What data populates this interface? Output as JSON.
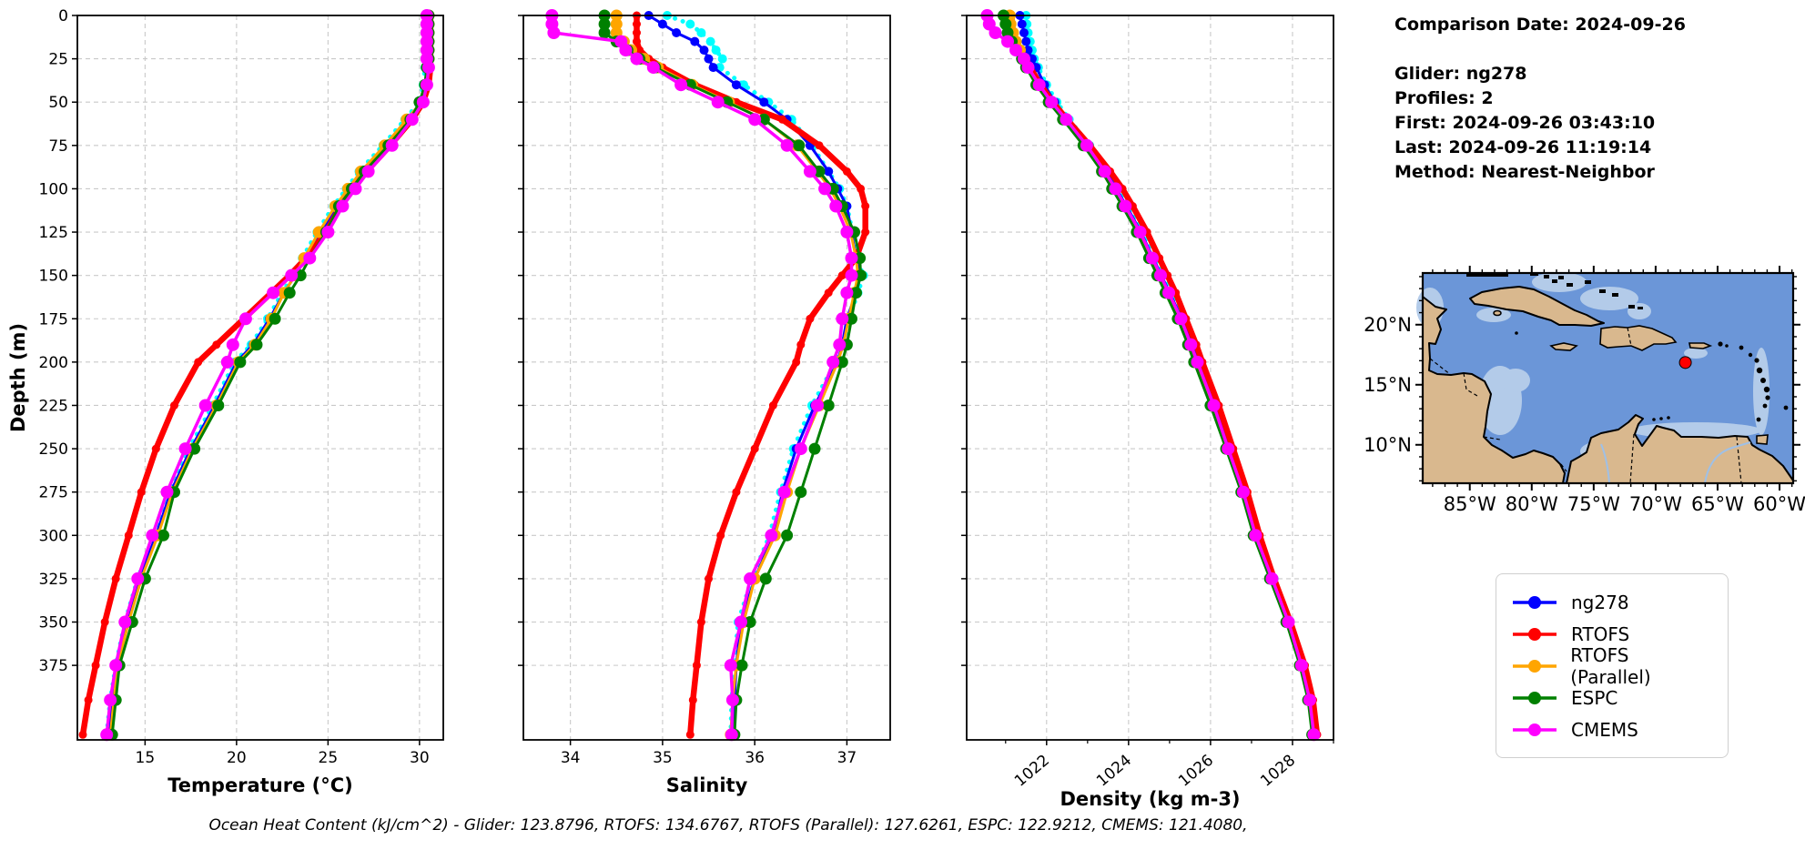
{
  "info_panel": {
    "lines": [
      "Comparison Date: 2024-09-26",
      "",
      "Glider: ng278",
      "Profiles: 2",
      "First: 2024-09-26 03:43:10",
      "Last: 2024-09-26 11:19:14",
      "Method: Nearest-Neighbor"
    ]
  },
  "footer": {
    "ohc_text": "Ocean Heat Content (kJ/cm^2) - Glider: 123.8796,  RTOFS: 134.6767,  RTOFS (Parallel): 127.6261,  ESPC: 122.9212,  CMEMS: 121.4080,"
  },
  "legend": {
    "entries": [
      {
        "label": "ng278",
        "color": "#0000ff"
      },
      {
        "label": "RTOFS",
        "color": "#ff0000"
      },
      {
        "label": "RTOFS (Parallel)",
        "color": "#ffa500"
      },
      {
        "label": "ESPC",
        "color": "#008000"
      },
      {
        "label": "CMEMS",
        "color": "#ff00ff"
      }
    ]
  },
  "map": {
    "xticks": [
      -85,
      -80,
      -75,
      -70,
      -65,
      -60
    ],
    "xtick_labels": [
      "85°W",
      "80°W",
      "75°W",
      "70°W",
      "65°W",
      "60°W"
    ],
    "yticks": [
      20,
      15,
      10
    ],
    "ytick_labels": [
      "20°N",
      "15°N",
      "10°N"
    ],
    "lon_min": -88.8,
    "lon_max": -58.9,
    "lat_min": 6.8,
    "lat_max": 24.3,
    "marker": {
      "lon": -67.6,
      "lat": 16.85,
      "color": "#ff0000"
    },
    "colors": {
      "water": "#6b96d8",
      "shallow": "#b3cbe9",
      "land": "#d9b88e",
      "coast": "#000000"
    }
  },
  "chart_data": [
    {
      "id": "temperature",
      "type": "line",
      "xlabel": "Temperature (°C)",
      "ylabel": "Depth (m)",
      "xlim": [
        11.3,
        31.3
      ],
      "xticks": [
        15,
        20,
        25,
        30
      ],
      "ylim": [
        0,
        418
      ],
      "yticks": [
        0,
        25,
        50,
        75,
        100,
        125,
        150,
        175,
        200,
        225,
        250,
        275,
        300,
        325,
        350,
        375
      ],
      "show_ytick_labels": true,
      "depths": [
        0,
        5,
        10,
        15,
        20,
        25,
        30,
        40,
        50,
        60,
        75,
        90,
        100,
        110,
        125,
        140,
        150,
        160,
        175,
        190,
        200,
        225,
        250,
        275,
        300,
        325,
        350,
        375,
        395,
        415
      ],
      "series": [
        {
          "id": "profile2",
          "label": null,
          "in_legend": false,
          "color": "#00ffff",
          "width": 5,
          "dash": "0.1 9",
          "marker": 5,
          "values": [
            30.3,
            30.3,
            30.3,
            30.3,
            30.3,
            30.3,
            30.3,
            30.2,
            30.0,
            29.2,
            28.0,
            26.7,
            26.0,
            25.3,
            24.4,
            23.6,
            23.1,
            22.5,
            21.7,
            20.8,
            19.9,
            18.7,
            17.4,
            16.3,
            15.5,
            14.6,
            13.9,
            13.4,
            13.1,
            12.9
          ]
        },
        {
          "id": "ng278",
          "label": "ng278",
          "in_legend": true,
          "color": "#0000ff",
          "width": 3,
          "dash": null,
          "marker": 5,
          "values": [
            30.4,
            30.4,
            30.4,
            30.4,
            30.4,
            30.4,
            30.4,
            30.3,
            30.1,
            29.4,
            28.2,
            26.9,
            26.2,
            25.5,
            24.6,
            23.8,
            23.2,
            22.6,
            21.8,
            20.9,
            20.0,
            18.8,
            17.5,
            16.4,
            15.6,
            14.7,
            14.0,
            13.5,
            13.2,
            13.0
          ]
        },
        {
          "id": "rtofs",
          "label": "RTOFS",
          "in_legend": true,
          "color": "#ff0000",
          "width": 6.5,
          "dash": null,
          "marker": 4.5,
          "values": [
            30.6,
            30.6,
            30.6,
            30.6,
            30.6,
            30.6,
            30.6,
            30.5,
            30.2,
            29.6,
            28.4,
            27.1,
            26.4,
            25.7,
            24.9,
            23.8,
            22.9,
            21.9,
            20.4,
            18.9,
            17.9,
            16.6,
            15.6,
            14.8,
            14.1,
            13.4,
            12.8,
            12.3,
            11.9,
            11.6
          ]
        },
        {
          "id": "rtofsp",
          "label": "RTOFS (Parallel)",
          "in_legend": true,
          "color": "#ffa500",
          "width": 3,
          "dash": null,
          "marker": 6.5,
          "values": [
            30.5,
            30.5,
            30.5,
            30.5,
            30.5,
            30.5,
            30.5,
            30.4,
            30.1,
            29.3,
            28.1,
            26.8,
            26.1,
            25.4,
            24.5,
            23.7,
            23.2,
            22.6,
            21.9,
            21.0,
            20.1,
            18.9,
            17.6,
            16.5,
            15.7,
            14.8,
            14.1,
            13.5,
            13.3,
            13.1
          ]
        },
        {
          "id": "espc",
          "label": "ESPC",
          "in_legend": true,
          "color": "#008000",
          "width": 3,
          "dash": null,
          "marker": 6.5,
          "values": [
            30.5,
            30.5,
            30.5,
            30.5,
            30.5,
            30.5,
            30.4,
            30.3,
            30.0,
            29.5,
            28.3,
            27.0,
            26.3,
            25.6,
            24.9,
            24.0,
            23.5,
            22.9,
            22.1,
            21.1,
            20.2,
            19.0,
            17.7,
            16.6,
            16.0,
            15.0,
            14.3,
            13.6,
            13.4,
            13.2
          ]
        },
        {
          "id": "cmems",
          "label": "CMEMS",
          "in_legend": true,
          "color": "#ff00ff",
          "width": 3.5,
          "dash": null,
          "marker": 7,
          "values": [
            30.4,
            30.4,
            30.4,
            30.4,
            30.4,
            30.4,
            30.5,
            30.4,
            30.2,
            29.6,
            28.5,
            27.2,
            26.5,
            25.8,
            25.0,
            24.0,
            23.0,
            22.0,
            20.5,
            19.8,
            19.5,
            18.3,
            17.2,
            16.2,
            15.4,
            14.6,
            13.9,
            13.4,
            13.1,
            12.9
          ]
        }
      ]
    },
    {
      "id": "salinity",
      "type": "line",
      "xlabel": "Salinity",
      "ylabel": null,
      "xlim": [
        33.49,
        37.47
      ],
      "xticks": [
        34,
        35,
        36,
        37
      ],
      "ylim": [
        0,
        418
      ],
      "yticks": [
        0,
        25,
        50,
        75,
        100,
        125,
        150,
        175,
        200,
        225,
        250,
        275,
        300,
        325,
        350,
        375
      ],
      "show_ytick_labels": false,
      "depths": [
        0,
        5,
        10,
        15,
        20,
        25,
        30,
        40,
        50,
        60,
        75,
        90,
        100,
        110,
        125,
        140,
        150,
        160,
        175,
        190,
        200,
        225,
        250,
        275,
        300,
        325,
        350,
        375,
        395,
        415
      ],
      "series": [
        {
          "id": "profile2",
          "label": null,
          "in_legend": false,
          "color": "#00ffff",
          "width": 5,
          "dash": "0.1 9",
          "marker": 5,
          "values": [
            35.05,
            35.3,
            35.42,
            35.52,
            35.58,
            35.65,
            35.62,
            35.88,
            36.15,
            36.4,
            36.62,
            36.8,
            36.92,
            37.0,
            37.06,
            37.1,
            37.18,
            37.12,
            37.02,
            36.96,
            36.88,
            36.62,
            36.42,
            36.28,
            36.16,
            35.97,
            35.82,
            35.78,
            35.75,
            35.74
          ]
        },
        {
          "id": "ng278",
          "label": "ng278",
          "in_legend": true,
          "color": "#0000ff",
          "width": 3,
          "dash": null,
          "marker": 5,
          "values": [
            34.85,
            35.0,
            35.15,
            35.35,
            35.45,
            35.5,
            35.55,
            35.8,
            36.1,
            36.35,
            36.6,
            36.8,
            36.9,
            37.0,
            37.05,
            37.1,
            37.15,
            37.1,
            37.0,
            36.95,
            36.9,
            36.65,
            36.45,
            36.3,
            36.2,
            36.0,
            35.85,
            35.8,
            35.78,
            35.77
          ]
        },
        {
          "id": "rtofs",
          "label": "RTOFS",
          "in_legend": true,
          "color": "#ff0000",
          "width": 6.5,
          "dash": null,
          "marker": 4.5,
          "values": [
            34.72,
            34.72,
            34.72,
            34.72,
            34.75,
            34.85,
            35.0,
            35.35,
            35.8,
            36.3,
            36.7,
            37.0,
            37.15,
            37.2,
            37.2,
            37.1,
            36.95,
            36.8,
            36.6,
            36.5,
            36.45,
            36.2,
            36.0,
            35.8,
            35.63,
            35.5,
            35.42,
            35.37,
            35.33,
            35.3
          ]
        },
        {
          "id": "rtofsp",
          "label": "RTOFS (Parallel)",
          "in_legend": true,
          "color": "#ffa500",
          "width": 3,
          "dash": null,
          "marker": 6.5,
          "values": [
            34.5,
            34.5,
            34.5,
            34.58,
            34.66,
            34.8,
            34.95,
            35.32,
            35.72,
            36.1,
            36.46,
            36.68,
            36.82,
            36.92,
            37.04,
            37.1,
            37.12,
            37.08,
            37.02,
            36.96,
            36.9,
            36.7,
            36.5,
            36.35,
            36.22,
            36.0,
            35.88,
            35.8,
            35.76,
            35.74
          ]
        },
        {
          "id": "espc",
          "label": "ESPC",
          "in_legend": true,
          "color": "#008000",
          "width": 3,
          "dash": null,
          "marker": 6.5,
          "values": [
            34.37,
            34.37,
            34.37,
            34.5,
            34.62,
            34.75,
            34.92,
            35.3,
            35.7,
            36.1,
            36.48,
            36.7,
            36.85,
            36.95,
            37.08,
            37.14,
            37.15,
            37.1,
            37.05,
            37.0,
            36.95,
            36.8,
            36.65,
            36.5,
            36.35,
            36.12,
            35.95,
            35.86,
            35.8,
            35.78
          ]
        },
        {
          "id": "cmems",
          "label": "CMEMS",
          "in_legend": true,
          "color": "#ff00ff",
          "width": 3.5,
          "dash": null,
          "marker": 7,
          "values": [
            33.8,
            33.8,
            33.82,
            34.55,
            34.6,
            34.72,
            34.9,
            35.2,
            35.6,
            36.0,
            36.35,
            36.6,
            36.76,
            36.88,
            37.0,
            37.05,
            37.05,
            37.0,
            36.95,
            36.92,
            36.85,
            36.68,
            36.5,
            36.32,
            36.18,
            35.95,
            35.85,
            35.74,
            35.76,
            35.75
          ]
        }
      ]
    },
    {
      "id": "density",
      "type": "line",
      "xlabel": "Density (kg m-3)",
      "ylabel": null,
      "xlim": [
        1020.05,
        1029.0
      ],
      "xticks": [
        1022,
        1024,
        1026,
        1028
      ],
      "minor_xticks": [
        1021,
        1023,
        1025,
        1027,
        1029
      ],
      "xtick_rotation": -40,
      "ylim": [
        0,
        418
      ],
      "yticks": [
        0,
        25,
        50,
        75,
        100,
        125,
        150,
        175,
        200,
        225,
        250,
        275,
        300,
        325,
        350,
        375
      ],
      "show_ytick_labels": false,
      "depths": [
        0,
        5,
        10,
        15,
        20,
        25,
        30,
        40,
        50,
        60,
        75,
        90,
        100,
        110,
        125,
        140,
        150,
        160,
        175,
        190,
        200,
        225,
        250,
        275,
        300,
        325,
        350,
        375,
        395,
        415
      ],
      "series": [
        {
          "id": "profile2",
          "label": null,
          "in_legend": false,
          "color": "#00ffff",
          "width": 5,
          "dash": "0.1 9",
          "marker": 5,
          "values": [
            1021.5,
            1021.52,
            1021.55,
            1021.6,
            1021.65,
            1021.7,
            1021.8,
            1022.0,
            1022.25,
            1022.55,
            1023.05,
            1023.5,
            1023.75,
            1024.0,
            1024.35,
            1024.65,
            1024.85,
            1025.05,
            1025.35,
            1025.6,
            1025.75,
            1026.15,
            1026.5,
            1026.85,
            1027.15,
            1027.55,
            1027.92,
            1028.27,
            1028.47,
            1028.57
          ]
        },
        {
          "id": "ng278",
          "label": "ng278",
          "in_legend": true,
          "color": "#0000ff",
          "width": 3,
          "dash": null,
          "marker": 5,
          "values": [
            1021.35,
            1021.4,
            1021.45,
            1021.5,
            1021.55,
            1021.65,
            1021.75,
            1021.95,
            1022.2,
            1022.5,
            1023.0,
            1023.45,
            1023.7,
            1023.95,
            1024.3,
            1024.6,
            1024.8,
            1025.0,
            1025.3,
            1025.55,
            1025.7,
            1026.1,
            1026.45,
            1026.8,
            1027.1,
            1027.5,
            1027.9,
            1028.25,
            1028.45,
            1028.55
          ]
        },
        {
          "id": "rtofs",
          "label": "RTOFS",
          "in_legend": true,
          "color": "#ff0000",
          "width": 6.5,
          "dash": null,
          "marker": 4.5,
          "values": [
            1021.15,
            1021.15,
            1021.2,
            1021.25,
            1021.35,
            1021.5,
            1021.6,
            1021.85,
            1022.15,
            1022.5,
            1023.05,
            1023.55,
            1023.85,
            1024.1,
            1024.45,
            1024.75,
            1024.95,
            1025.15,
            1025.4,
            1025.65,
            1025.8,
            1026.2,
            1026.55,
            1026.9,
            1027.2,
            1027.55,
            1027.95,
            1028.3,
            1028.5,
            1028.6
          ]
        },
        {
          "id": "rtofsp",
          "label": "RTOFS (Parallel)",
          "in_legend": true,
          "color": "#ffa500",
          "width": 3,
          "dash": null,
          "marker": 6.5,
          "values": [
            1021.1,
            1021.12,
            1021.18,
            1021.25,
            1021.35,
            1021.45,
            1021.55,
            1021.8,
            1022.1,
            1022.45,
            1022.95,
            1023.4,
            1023.65,
            1023.9,
            1024.25,
            1024.55,
            1024.75,
            1024.95,
            1025.25,
            1025.5,
            1025.65,
            1026.05,
            1026.4,
            1026.78,
            1027.08,
            1027.48,
            1027.88,
            1028.2,
            1028.4,
            1028.5
          ]
        },
        {
          "id": "espc",
          "label": "ESPC",
          "in_legend": true,
          "color": "#008000",
          "width": 3,
          "dash": null,
          "marker": 6.5,
          "values": [
            1020.95,
            1021.0,
            1021.05,
            1021.15,
            1021.25,
            1021.4,
            1021.5,
            1021.75,
            1022.05,
            1022.4,
            1022.9,
            1023.35,
            1023.6,
            1023.85,
            1024.2,
            1024.5,
            1024.7,
            1024.9,
            1025.2,
            1025.45,
            1025.6,
            1026.0,
            1026.38,
            1026.75,
            1027.05,
            1027.45,
            1027.85,
            1028.18,
            1028.38,
            1028.48
          ]
        },
        {
          "id": "cmems",
          "label": "CMEMS",
          "in_legend": true,
          "color": "#ff00ff",
          "width": 3.5,
          "dash": null,
          "marker": 7,
          "values": [
            1020.55,
            1020.6,
            1020.75,
            1021.05,
            1021.25,
            1021.45,
            1021.55,
            1021.82,
            1022.12,
            1022.48,
            1022.98,
            1023.42,
            1023.68,
            1023.92,
            1024.28,
            1024.58,
            1024.78,
            1024.98,
            1025.28,
            1025.52,
            1025.68,
            1026.08,
            1026.43,
            1026.8,
            1027.1,
            1027.5,
            1027.9,
            1028.22,
            1028.42,
            1028.52
          ]
        }
      ]
    }
  ]
}
